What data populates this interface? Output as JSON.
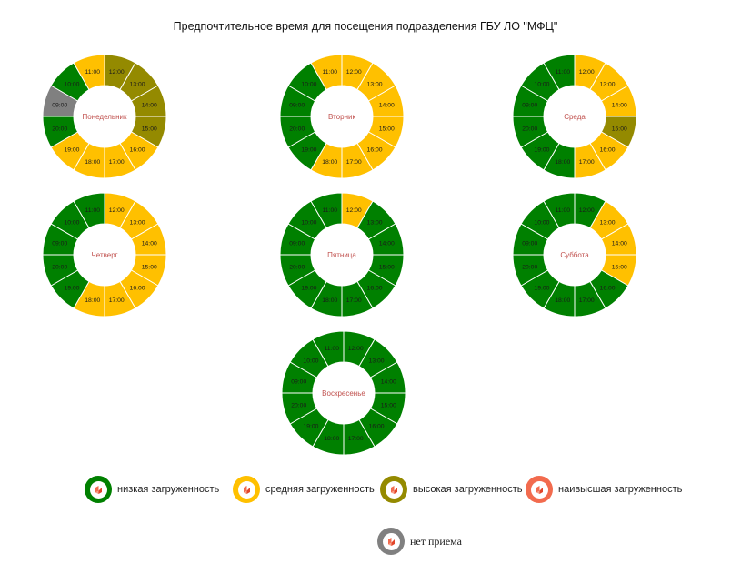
{
  "title": "Предпочтительное время для посещения подразделения ГБУ ЛО \"МФЦ\"",
  "colors": {
    "low": "#008000",
    "medium": "#FFC000",
    "high": "#948A00",
    "highest": "#F26B4E",
    "closed": "#808080"
  },
  "legend": [
    {
      "key": "low",
      "label": "низкая загруженность",
      "icon": "mfc-logo-icon"
    },
    {
      "key": "medium",
      "label": "средняя загруженность",
      "icon": "mfc-logo-icon"
    },
    {
      "key": "high",
      "label": "высокая загруженность",
      "icon": "mfc-logo-icon"
    },
    {
      "key": "highest",
      "label": "наивысшая загруженность",
      "icon": "mfc-logo-icon"
    },
    {
      "key": "closed",
      "label": "нет приема",
      "icon": "mfc-logo-icon"
    }
  ],
  "chart_data": [
    {
      "type": "donut",
      "title": "Понедельник",
      "categories": [
        "12:00",
        "13:00",
        "14:00",
        "15:00",
        "16:00",
        "17:00",
        "18:00",
        "19:00",
        "20:00",
        "09:00",
        "10:00",
        "11:00"
      ],
      "levels": [
        "high",
        "high",
        "high",
        "high",
        "medium",
        "medium",
        "medium",
        "medium",
        "low",
        "closed",
        "low",
        "medium"
      ]
    },
    {
      "type": "donut",
      "title": "Вторник",
      "categories": [
        "12:00",
        "13:00",
        "14:00",
        "15:00",
        "16:00",
        "17:00",
        "18:00",
        "19:00",
        "20:00",
        "09:00",
        "10:00",
        "11:00"
      ],
      "levels": [
        "medium",
        "medium",
        "medium",
        "medium",
        "medium",
        "medium",
        "medium",
        "low",
        "low",
        "low",
        "low",
        "medium"
      ]
    },
    {
      "type": "donut",
      "title": "Среда",
      "categories": [
        "12:00",
        "13:00",
        "14:00",
        "15:00",
        "16:00",
        "17:00",
        "18:00",
        "19:00",
        "20:00",
        "09:00",
        "10:00",
        "11:00"
      ],
      "levels": [
        "medium",
        "medium",
        "medium",
        "high",
        "medium",
        "medium",
        "low",
        "low",
        "low",
        "low",
        "low",
        "low"
      ]
    },
    {
      "type": "donut",
      "title": "Четверг",
      "categories": [
        "12:00",
        "13:00",
        "14:00",
        "15:00",
        "16:00",
        "17:00",
        "18:00",
        "19:00",
        "20:00",
        "09:00",
        "10:00",
        "11:00"
      ],
      "levels": [
        "medium",
        "medium",
        "medium",
        "medium",
        "medium",
        "medium",
        "medium",
        "low",
        "low",
        "low",
        "low",
        "low"
      ]
    },
    {
      "type": "donut",
      "title": "Пятница",
      "categories": [
        "12:00",
        "13:00",
        "14:00",
        "15:00",
        "16:00",
        "17:00",
        "18:00",
        "19:00",
        "20:00",
        "09:00",
        "10:00",
        "11:00"
      ],
      "levels": [
        "medium",
        "low",
        "low",
        "low",
        "low",
        "low",
        "low",
        "low",
        "low",
        "low",
        "low",
        "low"
      ]
    },
    {
      "type": "donut",
      "title": "Суббота",
      "categories": [
        "12:00",
        "13:00",
        "14:00",
        "15:00",
        "16:00",
        "17:00",
        "18:00",
        "19:00",
        "20:00",
        "09:00",
        "10:00",
        "11:00"
      ],
      "levels": [
        "low",
        "medium",
        "medium",
        "medium",
        "low",
        "low",
        "low",
        "low",
        "low",
        "low",
        "low",
        "low"
      ]
    },
    {
      "type": "donut",
      "title": "Воскресенье",
      "categories": [
        "12:00",
        "13:00",
        "14:00",
        "15:00",
        "16:00",
        "17:00",
        "18:00",
        "19:00",
        "20:00",
        "09:00",
        "10:00",
        "11:00"
      ],
      "levels": [
        "low",
        "low",
        "low",
        "low",
        "low",
        "low",
        "low",
        "low",
        "low",
        "low",
        "low",
        "low"
      ]
    }
  ]
}
